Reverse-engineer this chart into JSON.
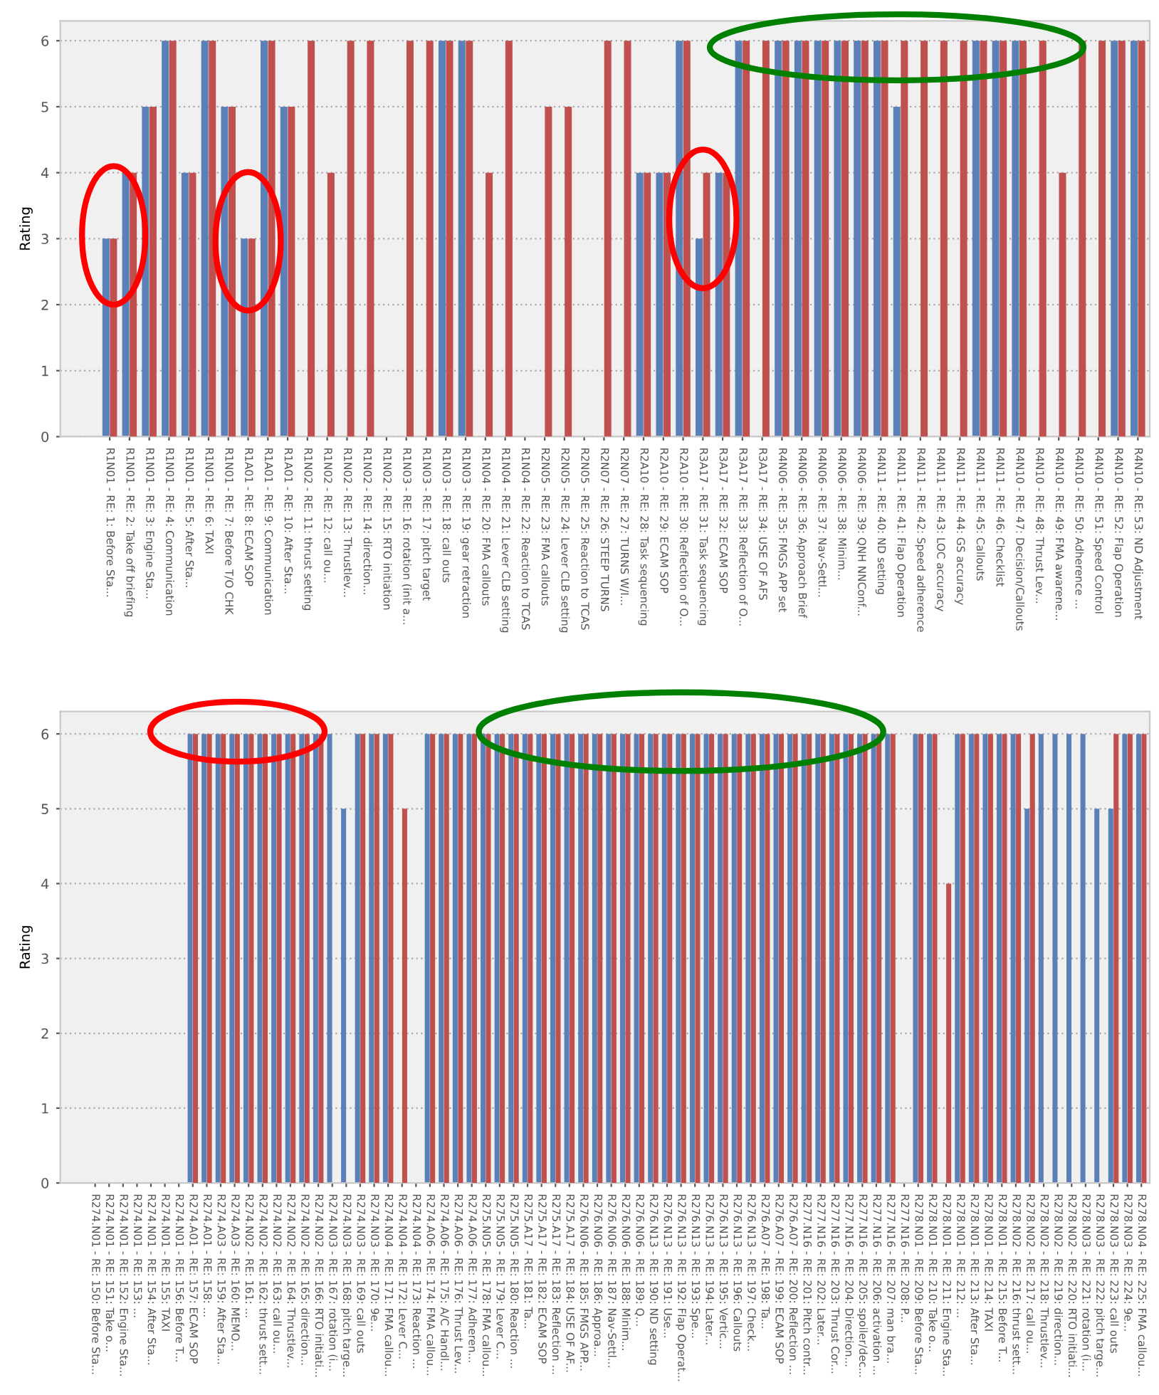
{
  "chart_data": [
    {
      "type": "bar",
      "ylabel": "Rating",
      "ylim": [
        0,
        6.3
      ],
      "yticks": [
        0,
        1,
        2,
        3,
        4,
        5,
        6
      ],
      "grid": "y",
      "categories": [
        "R1N01 - RE: 1: Before Sta...",
        "R1N01 - RE: 2: Take off briefing",
        "R1N01 - RE: 3: Engine Sta...",
        "R1N01 - RE: 4: Communication",
        "R1N01 - RE: 5: After Sta...",
        "R1N01 - RE: 6: TAXI",
        "R1N01 - RE: 7: Before T/O CHK",
        "R1A01 - RE: 8: ECAM SOP",
        "R1A01 - RE: 9: Communication",
        "R1A01 - RE: 10: After Sta...",
        "R1N02 - RE: 11: thrust setting",
        "R1N02 - RE: 12: call ou...",
        "R1N02 - RE: 13: Thrustlev...",
        "R1N02 - RE: 14: direction...",
        "R1N02 - RE: 15: RTO initiation",
        "R1N03 - RE: 16: rotation (init a...",
        "R1N03 - RE: 17: pitch target",
        "R1N03 - RE: 18: call outs",
        "R1N03 - RE: 19: gear retraction",
        "R1N04 - RE: 20: FMA callouts",
        "R1N04 - RE: 21: Lever CLB setting",
        "R1N04 - RE: 22: Reaction to TCAS",
        "R2N05 - RE: 23: FMA callouts",
        "R2N05 - RE: 24: Lever CLB setting",
        "R2N05 - RE: 25: Reaction to TCAS",
        "R2N07 - RE: 26: STEEP TURNS",
        "R2N07 - RE: 27: TURNS W/I...",
        "R2A10 - RE: 28: Task sequencing",
        "R2A10 - RE: 29: ECAM SOP",
        "R2A10 - RE: 30: Reflection of O...",
        "R3A17 - RE: 31: Task sequencing",
        "R3A17 - RE: 32: ECAM SOP",
        "R3A17 - RE: 33: Reflection of O...",
        "R3A17 - RE: 34: USE OF AFS",
        "R4N06 - RE: 35: FMGS APP set",
        "R4N06 - RE: 36: Approach Brief",
        "R4N06 - RE: 37: Nav-Settl...",
        "R4N06 - RE: 38: Minim...",
        "R4N06 - RE: 39: QNH NNConf...",
        "R4N11 - RE: 40: ND setting",
        "R4N11 - RE: 41: Flap Operation",
        "R4N11 - RE: 42: Speed adherence",
        "R4N11 - RE: 43: LOC accuracy",
        "R4N11 - RE: 44: GS accuracy",
        "R4N11 - RE: 45: Callouts",
        "R4N11 - RE: 46: Checklist",
        "R4N10 - RE: 47: Decision/Callouts",
        "R4N10 - RE: 48: Thrust Lev...",
        "R4N10 - RE: 49: FMA awarene...",
        "R4N10 - RE: 50: Adherence ...",
        "R4N10 - RE: 51: Speed Control",
        "R4N10 - RE: 52: Flap Operation",
        "R4N10 - RE: 53: ND Adjustment"
      ],
      "series": [
        {
          "color": "#5b80b8",
          "values": [
            3,
            4,
            5,
            6,
            4,
            6,
            5,
            3,
            6,
            5,
            null,
            null,
            null,
            null,
            null,
            null,
            null,
            6,
            6,
            null,
            null,
            null,
            null,
            null,
            null,
            null,
            null,
            4,
            4,
            6,
            3,
            4,
            6,
            null,
            6,
            6,
            6,
            6,
            6,
            6,
            5,
            null,
            null,
            null,
            6,
            6,
            6,
            null,
            null,
            null,
            null,
            6,
            6
          ]
        },
        {
          "color": "#c0504d",
          "values": [
            3,
            4,
            5,
            6,
            4,
            6,
            5,
            3,
            6,
            5,
            6,
            4,
            6,
            6,
            null,
            6,
            6,
            6,
            6,
            4,
            6,
            null,
            5,
            5,
            null,
            6,
            6,
            4,
            4,
            6,
            4,
            4,
            6,
            6,
            6,
            6,
            6,
            6,
            6,
            6,
            6,
            6,
            6,
            6,
            6,
            6,
            6,
            6,
            4,
            6,
            6,
            6,
            6
          ]
        }
      ]
    },
    {
      "type": "bar",
      "ylabel": "Rating",
      "ylim": [
        0,
        6.3
      ],
      "yticks": [
        0,
        1,
        2,
        3,
        4,
        5,
        6
      ],
      "grid": "y",
      "categories": [
        "R274.N01 - RE: 150: Before Sta...",
        "R274.N01 - RE: 151: Take o...",
        "R274.N01 - RE: 152: Engine Sta...",
        "R274.N01 - RE: 153: ...",
        "R274.N01 - RE: 154: After Sta...",
        "R274.N01 - RE: 155: TAXI",
        "R274.N01 - RE: 156: Before T...",
        "R274.A01 - RE: 157: ECAM SOP",
        "R274.A01 - RE: 158: ...",
        "R274.A03 - RE: 159: After Sta...",
        "R274.A03 - RE: 160: MEMO...",
        "R274.N02 - RE: 161: ...",
        "R274.N02 - RE: 162: thrust sett...",
        "R274.N02 - RE: 163: call ou...",
        "R274.N02 - RE: 164: Thrustlev...",
        "R274.N02 - RE: 165: direction...",
        "R274.N02 - RE: 166: RTO initiati...",
        "R274.N03 - RE: 167: rotation (i...",
        "R274.N03 - RE: 168: pitch targe...",
        "R274.N03 - RE: 169: call outs",
        "R274.N03 - RE: 170: 9e...",
        "R274.N04 - RE: 171: FMA callou...",
        "R274.N04 - RE: 172: Lever C...",
        "R274.N04 - RE: 173: Reaction ...",
        "R274.A06 - RE: 174: FMA callou...",
        "R274.A06 - RE: 175: A/C Handl...",
        "R274.A06 - RE: 176: Thrust Lev...",
        "R274.A06 - RE: 177: Adheren...",
        "R275.N05 - RE: 178: FMA callou...",
        "R275.N05 - RE: 179: Lever C...",
        "R275.N05 - RE: 180: Reaction ...",
        "R275.A17 - RE: 181: Ta...",
        "R275.A17 - RE: 182: ECAM SOP",
        "R275.A17 - RE: 183: Reflection ...",
        "R275.A17 - RE: 184: USE OF AF...",
        "R276.N06 - RE: 185: FMGS APP...",
        "R276.N06 - RE: 186: Approa...",
        "R276.N06 - RE: 187: Nav-Settl...",
        "R276.N06 - RE: 188: Minim...",
        "R276.N06 - RE: 189: Q...",
        "R276.N13 - RE: 190: ND setting",
        "R276.N13 - RE: 191: Use...",
        "R276.N13 - RE: 192: Flap Operat...",
        "R276.N13 - RE: 193: Spe...",
        "R276.N13 - RE: 194: Later...",
        "R276.N13 - RE: 195: Vertic...",
        "R276.N13 - RE: 196: Callouts",
        "R276.N13 - RE: 197: Check...",
        "R276.A07 - RE: 198: Ta...",
        "R276.A07 - RE: 199: ECAM SOP",
        "R276.A07 - RE: 200: Reflection ...",
        "R277.N16 - RE: 201: Pitch contr...",
        "R277.N16 - RE: 202: Later...",
        "R277.N16 - RE: 203: Thrust Cor...",
        "R277.N16 - RE: 204: Direction...",
        "R277.N16 - RE: 205: spoiler/dec...",
        "R277.N16 - RE: 206: activation ...",
        "R277.N16 - RE: 207: man bra...",
        "R277.N16 - RE: 208: P...",
        "R278.N01 - RE: 209: Before Sta...",
        "R278.N01 - RE: 210: Take o...",
        "R278.N01 - RE: 211: Engine Sta...",
        "R278.N01 - RE: 212: ...",
        "R278.N01 - RE: 213: After Sta...",
        "R278.N01 - RE: 214: TAXI",
        "R278.N01 - RE: 215: Before T...",
        "R278.N02 - RE: 216: thrust sett...",
        "R278.N02 - RE: 217: call ou...",
        "R278.N02 - RE: 218: Thrustlev...",
        "R278.N02 - RE: 219: direction...",
        "R278.N02 - RE: 220: RTO initiati...",
        "R278.N03 - RE: 221: rotation (i...",
        "R278.N03 - RE: 222: pitch targe...",
        "R278.N03 - RE: 223: call outs",
        "R278.N03 - RE: 224: 9e...",
        "R278.N04 - RE: 225: FMA callou..."
      ],
      "series": [
        {
          "color": "#5b80b8",
          "values": [
            null,
            null,
            null,
            null,
            null,
            null,
            null,
            6,
            6,
            6,
            6,
            6,
            6,
            6,
            6,
            6,
            6,
            6,
            5,
            6,
            6,
            6,
            null,
            null,
            6,
            6,
            6,
            6,
            6,
            6,
            6,
            6,
            6,
            6,
            6,
            6,
            6,
            6,
            6,
            6,
            6,
            6,
            6,
            6,
            6,
            6,
            6,
            6,
            6,
            6,
            6,
            6,
            6,
            6,
            6,
            6,
            6,
            6,
            null,
            6,
            6,
            null,
            6,
            6,
            6,
            6,
            6,
            5,
            6,
            6,
            6,
            6,
            5,
            5,
            6,
            6
          ]
        },
        {
          "color": "#c0504d",
          "values": [
            null,
            null,
            null,
            null,
            null,
            null,
            null,
            6,
            6,
            6,
            6,
            6,
            6,
            6,
            6,
            6,
            6,
            null,
            null,
            6,
            6,
            6,
            5,
            null,
            6,
            6,
            6,
            6,
            6,
            6,
            6,
            6,
            6,
            6,
            6,
            6,
            6,
            6,
            6,
            6,
            6,
            6,
            6,
            6,
            6,
            6,
            6,
            6,
            6,
            6,
            6,
            6,
            6,
            6,
            6,
            6,
            6,
            6,
            null,
            6,
            6,
            4,
            6,
            6,
            6,
            6,
            6,
            6,
            null,
            null,
            null,
            null,
            null,
            6,
            6,
            6
          ]
        }
      ]
    }
  ]
}
